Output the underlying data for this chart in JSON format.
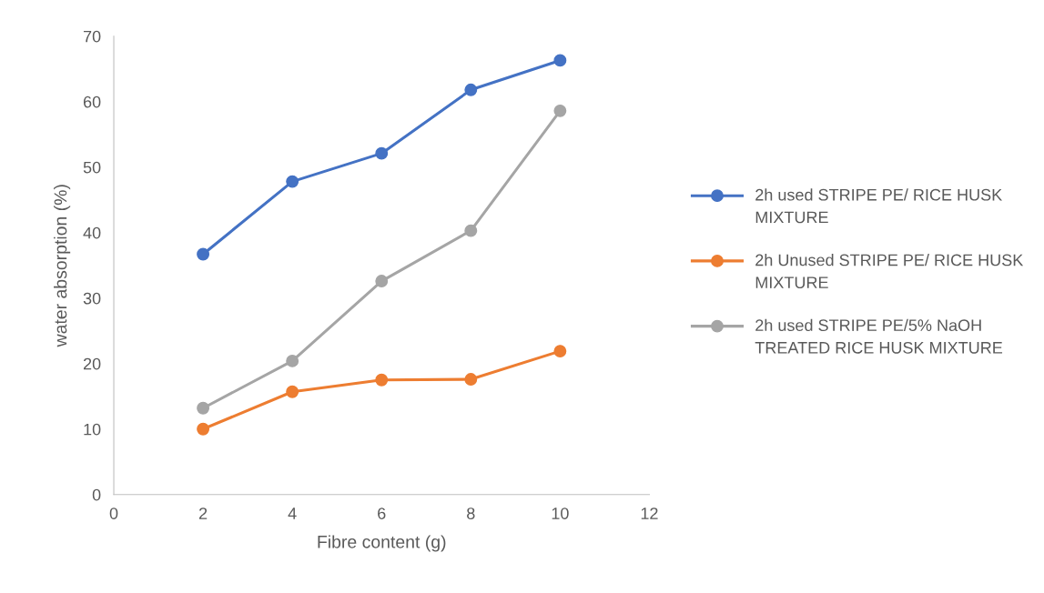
{
  "chart_data": {
    "type": "line",
    "xlabel": "Fibre content (g)",
    "ylabel": "water absorption (%)",
    "x": [
      2,
      4,
      6,
      8,
      10
    ],
    "series": [
      {
        "name": "2h used STRIPE PE/ RICE HUSK MIXTURE",
        "color": "#4472c4",
        "values": [
          36.7,
          47.8,
          52.1,
          61.8,
          66.3
        ]
      },
      {
        "name": "2h Unused STRIPE PE/ RICE HUSK MIXTURE",
        "color": "#ed7d31",
        "values": [
          10.0,
          15.7,
          17.5,
          17.6,
          21.9
        ]
      },
      {
        "name": "2h used STRIPE PE/5% NaOH TREATED RICE HUSK MIXTURE",
        "color": "#a5a5a5",
        "values": [
          13.2,
          20.4,
          32.6,
          40.3,
          58.6
        ]
      }
    ],
    "xlim": [
      0,
      12
    ],
    "xticks": [
      0,
      2,
      4,
      6,
      8,
      10,
      12
    ],
    "ylim": [
      0,
      70
    ],
    "yticks": [
      0,
      10,
      20,
      30,
      40,
      50,
      60,
      70
    ],
    "grid": false,
    "legend": "right",
    "marker": "circle",
    "line_style": "solid"
  }
}
